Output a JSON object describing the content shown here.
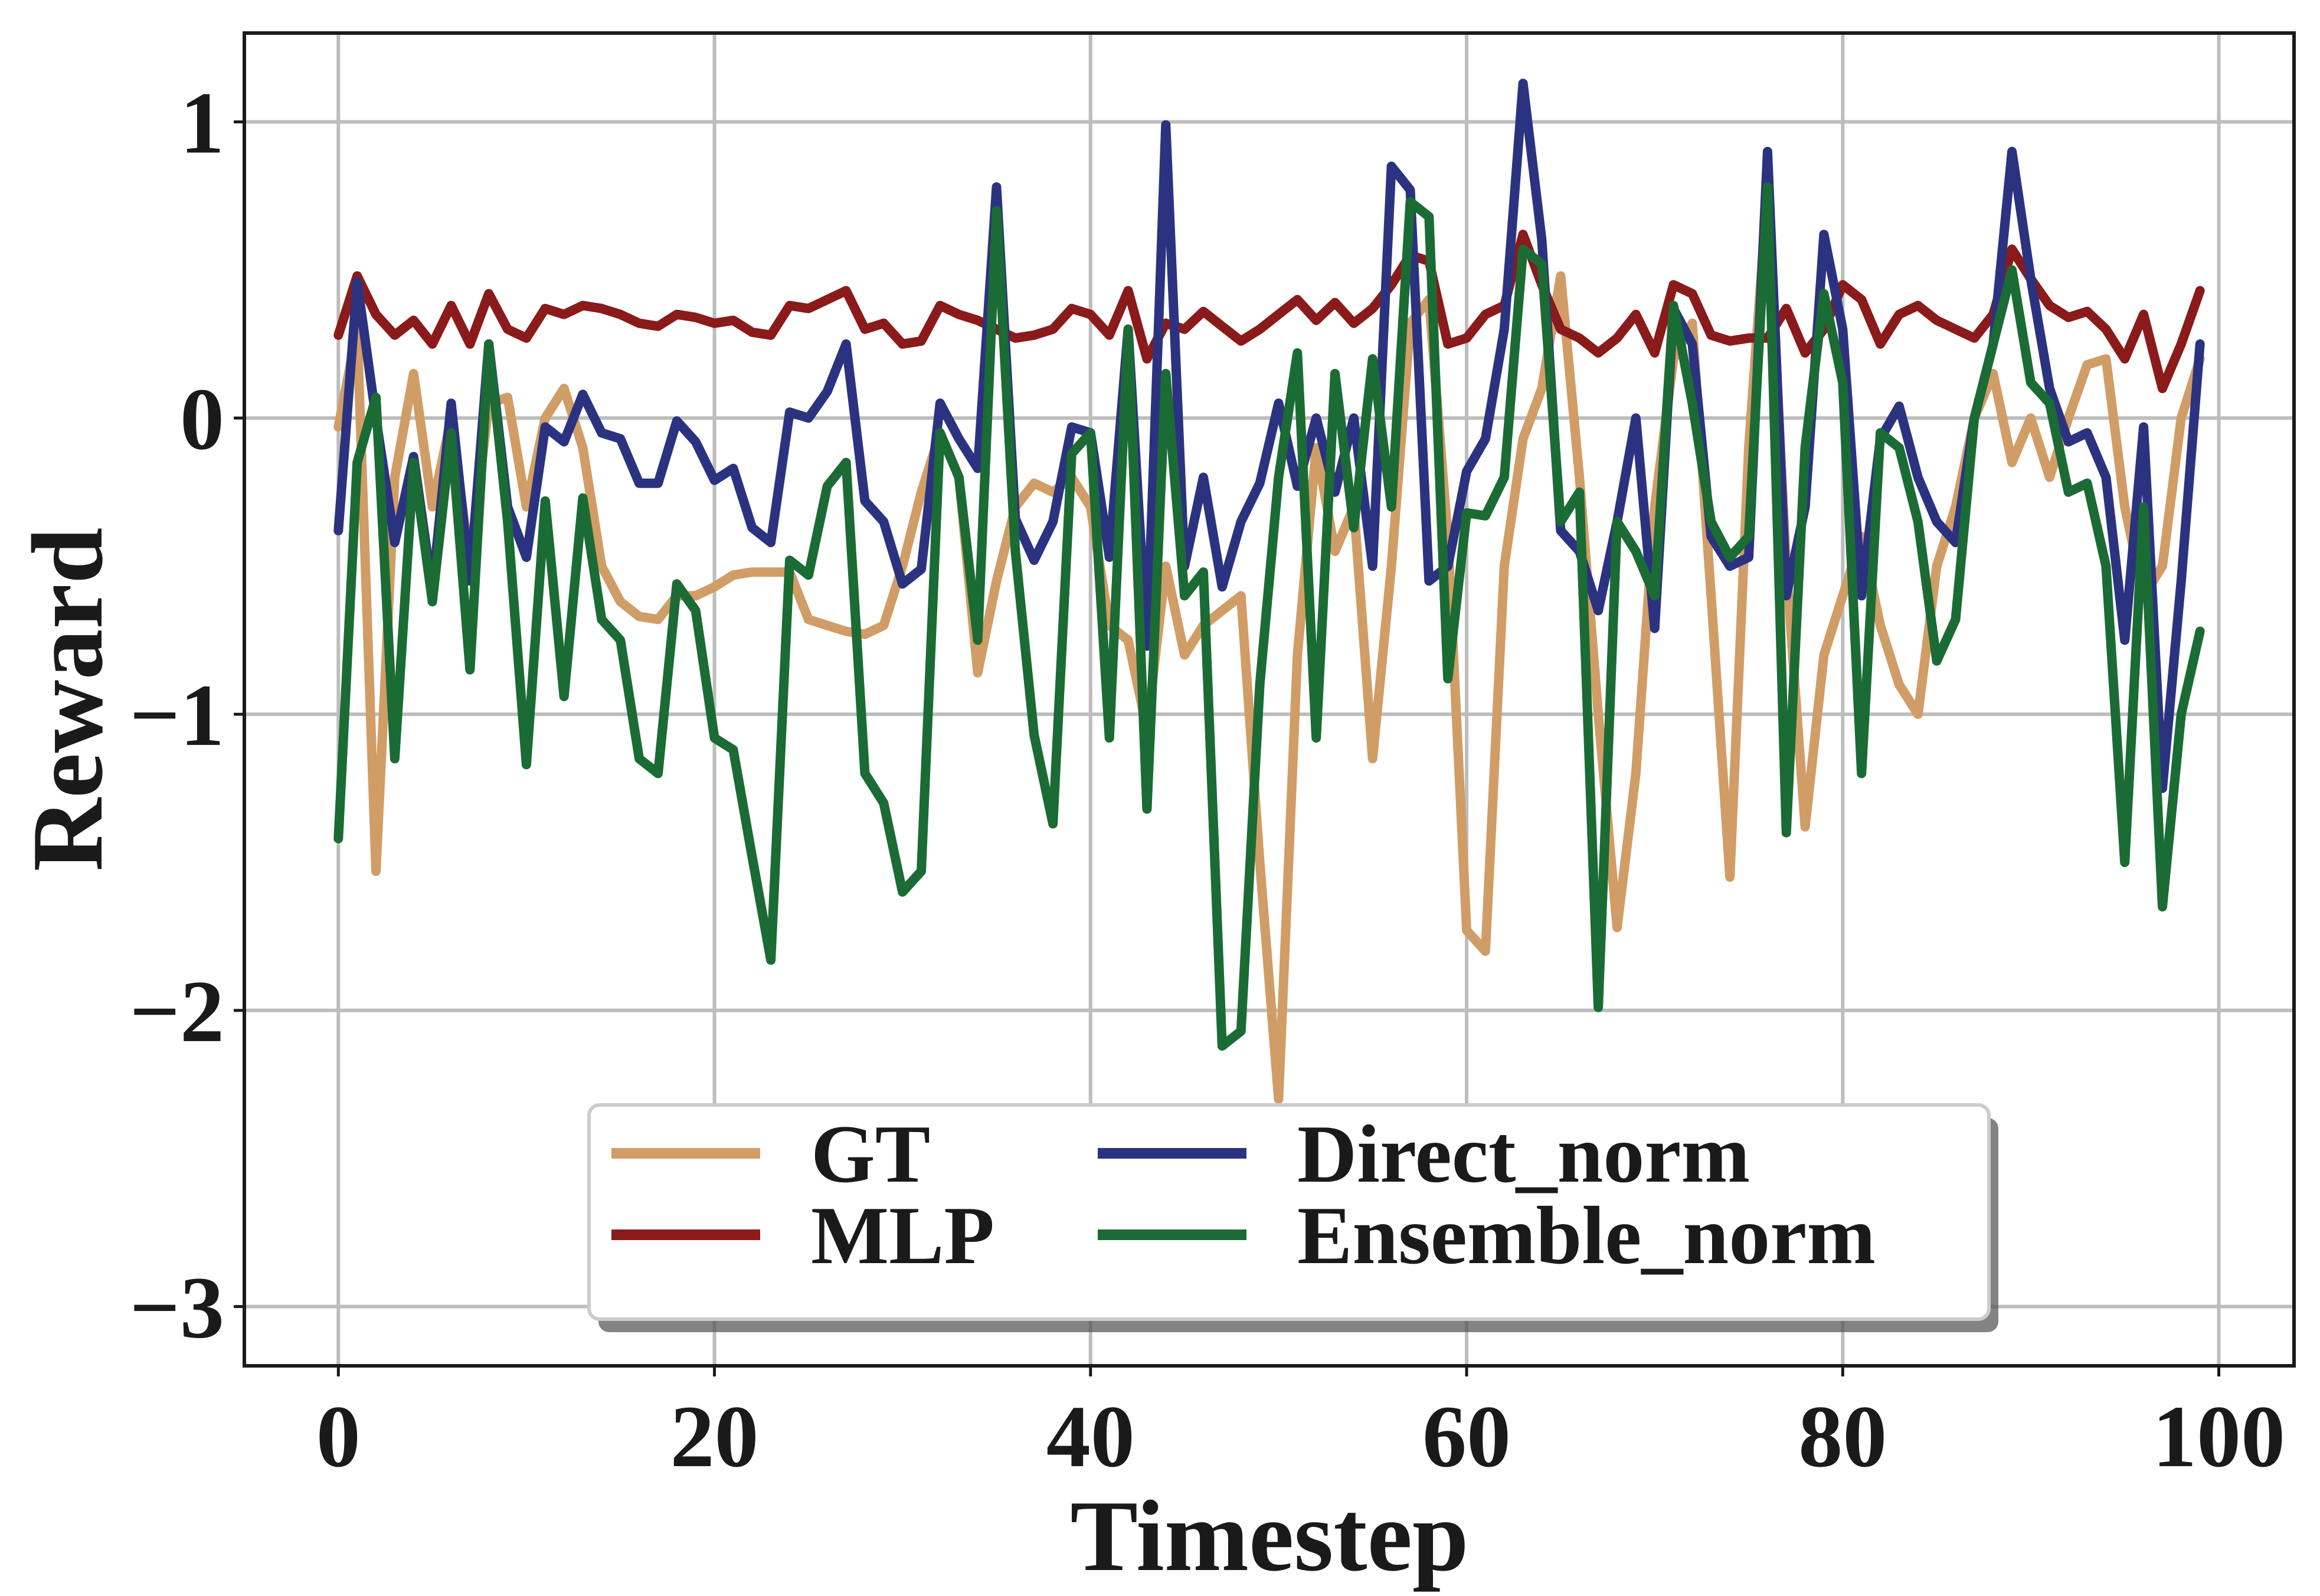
{
  "chart_data": {
    "type": "line",
    "title": "",
    "xlabel": "Timestep",
    "ylabel": "Reward",
    "xlim": [
      -5,
      104
    ],
    "ylim": [
      -3.2,
      1.3
    ],
    "xticks": [
      0,
      20,
      40,
      60,
      80,
      100
    ],
    "yticks": [
      1,
      0,
      -1,
      -2,
      -3
    ],
    "xtick_labels": [
      "0",
      "20",
      "40",
      "60",
      "80",
      "100"
    ],
    "ytick_labels": [
      "1",
      "0",
      "−1",
      "−2",
      "−3"
    ],
    "grid": true,
    "legend": {
      "placement": "lower-center",
      "ncol": 2
    },
    "series": [
      {
        "name": "GT",
        "color": "#d19d67",
        "values": [
          -0.03,
          0.3,
          -1.53,
          -0.2,
          0.15,
          -0.3,
          0.0,
          -0.5,
          0.05,
          0.07,
          -0.3,
          0.0,
          0.1,
          -0.1,
          -0.5,
          -0.62,
          -0.67,
          -0.68,
          -0.6,
          -0.6,
          -0.57,
          -0.53,
          -0.52,
          -0.52,
          -0.52,
          -0.68,
          -0.7,
          -0.72,
          -0.73,
          -0.7,
          -0.5,
          -0.25,
          -0.05,
          -0.2,
          -0.86,
          -0.55,
          -0.3,
          -0.22,
          -0.25,
          -0.2,
          -0.3,
          -0.7,
          -0.75,
          -1.05,
          -0.5,
          -0.8,
          -0.7,
          -0.65,
          -0.6,
          -1.5,
          -2.3,
          -0.8,
          -0.1,
          -0.45,
          -0.3,
          -1.15,
          -0.5,
          0.32,
          0.4,
          -0.4,
          -1.73,
          -1.8,
          -0.5,
          -0.07,
          0.1,
          0.48,
          -0.2,
          -1.0,
          -1.72,
          -1.2,
          -0.3,
          0.2,
          0.32,
          -0.6,
          -1.55,
          -0.1,
          0.78,
          -0.5,
          -1.38,
          -0.8,
          -0.6,
          -0.4,
          -0.7,
          -0.9,
          -1.0,
          -0.5,
          -0.3,
          0.0,
          0.15,
          -0.15,
          0.0,
          -0.2,
          0.0,
          0.18,
          0.2,
          -0.3,
          -0.6,
          -0.5,
          0.0,
          0.2
        ]
      },
      {
        "name": "MLP",
        "color": "#8b1a1a",
        "values": [
          0.28,
          0.48,
          0.35,
          0.28,
          0.33,
          0.25,
          0.38,
          0.25,
          0.42,
          0.3,
          0.27,
          0.37,
          0.35,
          0.38,
          0.37,
          0.35,
          0.32,
          0.31,
          0.35,
          0.34,
          0.32,
          0.33,
          0.29,
          0.28,
          0.38,
          0.37,
          0.4,
          0.43,
          0.3,
          0.32,
          0.25,
          0.26,
          0.38,
          0.35,
          0.33,
          0.3,
          0.27,
          0.28,
          0.3,
          0.37,
          0.35,
          0.28,
          0.43,
          0.2,
          0.32,
          0.3,
          0.36,
          0.31,
          0.26,
          0.3,
          0.35,
          0.4,
          0.33,
          0.39,
          0.32,
          0.37,
          0.45,
          0.55,
          0.53,
          0.25,
          0.27,
          0.35,
          0.38,
          0.62,
          0.45,
          0.3,
          0.27,
          0.22,
          0.27,
          0.35,
          0.22,
          0.45,
          0.42,
          0.28,
          0.26,
          0.27,
          0.27,
          0.37,
          0.22,
          0.3,
          0.45,
          0.4,
          0.25,
          0.35,
          0.38,
          0.33,
          0.3,
          0.27,
          0.35,
          0.57,
          0.47,
          0.38,
          0.34,
          0.36,
          0.3,
          0.2,
          0.35,
          0.1,
          0.25,
          0.43
        ]
      },
      {
        "name": "Direct_norm",
        "color": "#2b3380",
        "values": [
          -0.38,
          0.46,
          0.0,
          -0.42,
          -0.13,
          -0.58,
          0.05,
          -0.55,
          0.25,
          -0.3,
          -0.47,
          -0.03,
          -0.08,
          0.08,
          -0.05,
          -0.07,
          -0.22,
          -0.22,
          -0.01,
          -0.08,
          -0.21,
          -0.17,
          -0.37,
          -0.42,
          0.02,
          0.0,
          0.09,
          0.25,
          -0.28,
          -0.35,
          -0.56,
          -0.51,
          0.05,
          -0.07,
          -0.17,
          0.78,
          -0.34,
          -0.48,
          -0.35,
          -0.03,
          -0.05,
          -0.47,
          0.3,
          -0.77,
          0.99,
          -0.5,
          -0.2,
          -0.57,
          -0.35,
          -0.22,
          0.05,
          -0.23,
          0.0,
          -0.25,
          0.0,
          -0.5,
          0.85,
          0.77,
          -0.55,
          -0.5,
          -0.18,
          -0.07,
          0.3,
          1.13,
          0.6,
          -0.38,
          -0.45,
          -0.65,
          -0.35,
          0.0,
          -0.71,
          0.37,
          0.25,
          -0.4,
          -0.5,
          -0.47,
          0.9,
          -0.6,
          -0.3,
          0.62,
          0.3,
          -0.6,
          -0.07,
          0.04,
          -0.2,
          -0.35,
          -0.42,
          0.0,
          0.25,
          0.9,
          0.47,
          0.1,
          -0.08,
          -0.05,
          -0.2,
          -0.75,
          -0.03,
          -1.25,
          -0.55,
          0.25
        ]
      },
      {
        "name": "Ensemble_norm",
        "color": "#1b6b35",
        "values": [
          -1.42,
          -0.15,
          0.07,
          -1.15,
          -0.15,
          -0.62,
          -0.05,
          -0.85,
          0.25,
          -0.35,
          -1.17,
          -0.28,
          -0.94,
          -0.27,
          -0.68,
          -0.75,
          -1.15,
          -1.2,
          -0.56,
          -0.65,
          -1.08,
          -1.12,
          -1.48,
          -1.83,
          -0.48,
          -0.53,
          -0.23,
          -0.15,
          -1.2,
          -1.3,
          -1.6,
          -1.53,
          -0.05,
          -0.2,
          -0.75,
          0.7,
          -0.45,
          -1.07,
          -1.37,
          -0.12,
          -0.05,
          -1.08,
          0.3,
          -1.32,
          0.15,
          -0.6,
          -0.52,
          -2.12,
          -2.07,
          -0.9,
          -0.2,
          0.22,
          -1.08,
          0.15,
          -0.37,
          0.2,
          -0.3,
          0.73,
          0.68,
          -0.88,
          -0.32,
          -0.33,
          -0.2,
          0.57,
          0.52,
          -0.35,
          -0.25,
          -1.99,
          -0.35,
          -0.45,
          -0.6,
          0.38,
          0.05,
          -0.35,
          -0.47,
          -0.4,
          0.78,
          -1.4,
          -0.1,
          0.42,
          0.12,
          -1.2,
          -0.05,
          -0.1,
          -0.35,
          -0.82,
          -0.68,
          0.0,
          0.25,
          0.5,
          0.12,
          0.05,
          -0.25,
          -0.22,
          -0.5,
          -1.5,
          -0.3,
          -1.65,
          -1.0,
          -0.72
        ]
      }
    ]
  }
}
